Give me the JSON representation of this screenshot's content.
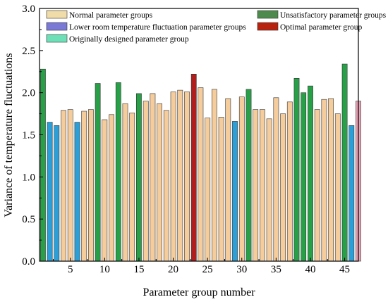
{
  "chart_data": {
    "type": "bar",
    "xlabel": "Parameter group number",
    "ylabel": "Variance of temperature fluctuations",
    "ylim": [
      0,
      3.0
    ],
    "xlim": [
      0.5,
      47.0
    ],
    "yticks": [
      "0.0",
      "0.5",
      "1.0",
      "1.5",
      "2.0",
      "2.5",
      "3.0"
    ],
    "xticks": [
      "5",
      "10",
      "15",
      "20",
      "25",
      "30",
      "35",
      "40",
      "45"
    ],
    "legend_position": "top",
    "legend": [
      {
        "key": "normal",
        "label": "Normal parameter groups"
      },
      {
        "key": "lower",
        "label": "Lower room temperature fluctuation parameter groups"
      },
      {
        "key": "original",
        "label": "Originally designed parameter group"
      },
      {
        "key": "unsat",
        "label": "Unsatisfactory parameter groups"
      },
      {
        "key": "optimal",
        "label": "Optimal parameter group"
      }
    ],
    "colors": {
      "normal": "#f5cc9b",
      "lower": "#2b9fd8",
      "original": "#e8a4b6",
      "unsat": "#27a048",
      "optimal": "#b01e1e",
      "legend_normal": "#f0dca8",
      "legend_lower": "#7a7ad6",
      "legend_original": "#6ee0b8",
      "legend_unsat": "#4e8a4e",
      "legend_optimal": "#b8230f"
    },
    "x": [
      1,
      2,
      3,
      4,
      5,
      6,
      7,
      8,
      9,
      10,
      11,
      12,
      13,
      14,
      15,
      16,
      17,
      18,
      19,
      20,
      21,
      22,
      23,
      24,
      25,
      26,
      27,
      28,
      29,
      30,
      31,
      32,
      33,
      34,
      35,
      36,
      37,
      38,
      39,
      40,
      41,
      42,
      43,
      44,
      45,
      46
    ],
    "values": [
      2.28,
      1.65,
      1.61,
      1.79,
      1.8,
      1.65,
      1.78,
      1.8,
      2.11,
      1.68,
      1.74,
      2.12,
      1.87,
      1.76,
      1.99,
      1.9,
      1.99,
      1.87,
      1.79,
      2.01,
      2.03,
      2.01,
      2.22,
      2.06,
      1.7,
      2.04,
      1.71,
      1.93,
      1.66,
      1.95,
      2.04,
      1.8,
      1.8,
      1.69,
      1.94,
      1.75,
      1.89,
      2.17,
      2.0,
      2.08,
      1.8,
      1.92,
      1.93,
      1.75,
      2.34,
      1.61
    ],
    "groups": [
      "unsat",
      "lower",
      "lower",
      "normal",
      "normal",
      "lower",
      "normal",
      "normal",
      "unsat",
      "normal",
      "normal",
      "unsat",
      "normal",
      "normal",
      "unsat",
      "normal",
      "normal",
      "normal",
      "normal",
      "normal",
      "normal",
      "normal",
      "optimal",
      "normal",
      "normal",
      "normal",
      "normal",
      "normal",
      "lower",
      "normal",
      "unsat",
      "normal",
      "normal",
      "normal",
      "normal",
      "normal",
      "normal",
      "unsat",
      "unsat",
      "unsat",
      "normal",
      "normal",
      "normal",
      "normal",
      "unsat",
      "lower"
    ],
    "extra_bar": {
      "x": 47,
      "value": 1.9,
      "group": "original"
    }
  }
}
